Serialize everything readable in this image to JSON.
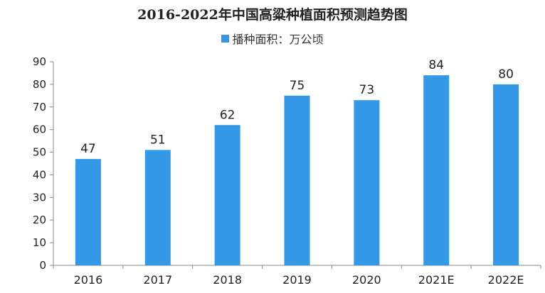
{
  "colors": {
    "bar": "#3399e6",
    "axis": "#888888",
    "text": "#222222"
  },
  "chart_data": {
    "type": "bar",
    "title": "2016-2022年中国高粱种植面积预测趋势图",
    "legend_position": "top-center",
    "grid": false,
    "ylim": [
      0,
      90
    ],
    "yticks": [
      0,
      10,
      20,
      30,
      40,
      50,
      60,
      70,
      80,
      90
    ],
    "categories": [
      "2016",
      "2017",
      "2018",
      "2019",
      "2020",
      "2021E",
      "2022E"
    ],
    "series": [
      {
        "name": "播种面积：万公顷",
        "values": [
          47,
          51,
          62,
          75,
          73,
          84,
          80
        ]
      }
    ]
  }
}
